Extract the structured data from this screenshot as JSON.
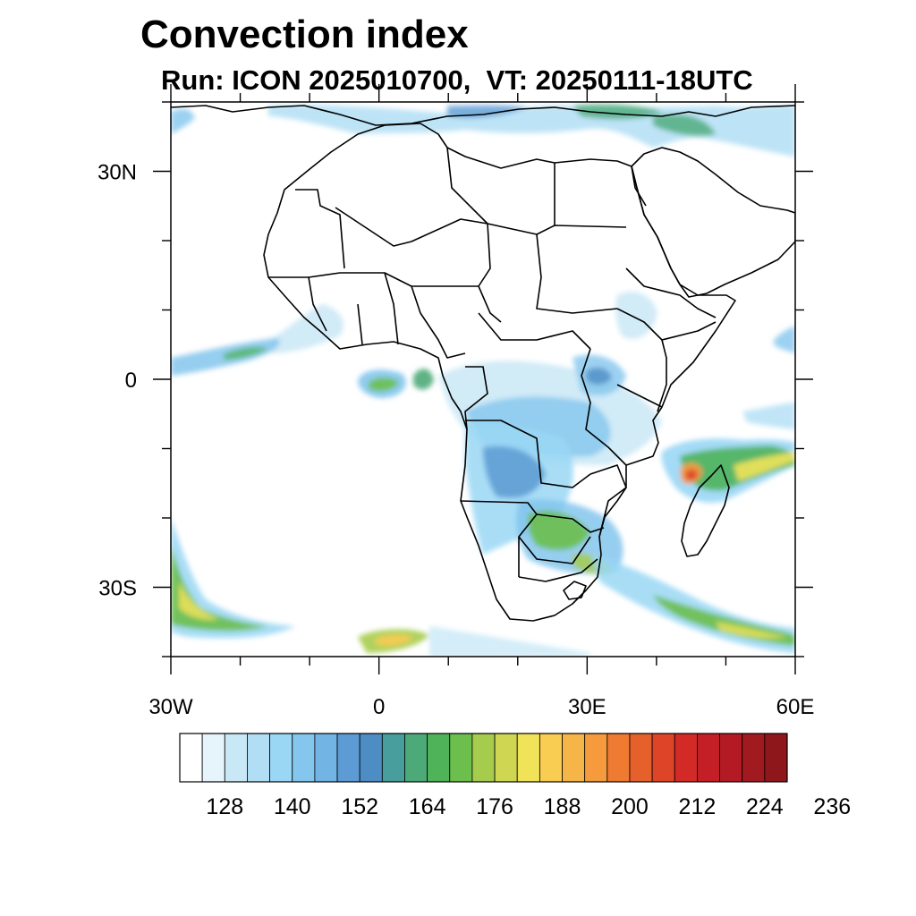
{
  "title": "Convection index",
  "subtitle": "Run: ICON 2025010700,  VT: 20250111-18UTC",
  "map": {
    "lon_range": [
      -30,
      60
    ],
    "lat_range": [
      -40,
      40
    ],
    "lat_labels": [
      "30N",
      "0",
      "30S"
    ],
    "lat_label_values": [
      30,
      0,
      -30
    ],
    "lon_labels": [
      "30W",
      "0",
      "30E",
      "60E"
    ],
    "lon_label_values": [
      -30,
      0,
      30,
      60
    ],
    "minor_ticks_deg": 10,
    "field_regions": [
      {
        "name": "north-mediterranean-band",
        "level": 1
      },
      {
        "name": "gulf-of-guinea-cell",
        "level": 5
      },
      {
        "name": "atlantic-equatorial-band",
        "level": 3
      },
      {
        "name": "congo-basin",
        "level": 2
      },
      {
        "name": "angola-zambia",
        "level": 3
      },
      {
        "name": "zimbabwe-mozambique",
        "level": 5
      },
      {
        "name": "mozambique-channel-cyclone",
        "level": 12
      },
      {
        "name": "indian-ocean-band",
        "level": 10
      },
      {
        "name": "south-atlantic-front",
        "level": 7
      },
      {
        "name": "south-africa-front",
        "level": 8
      },
      {
        "name": "ethiopia-highlands",
        "level": 1
      }
    ]
  },
  "colorbar": {
    "colors": [
      "#ffffff",
      "#e6f4fb",
      "#c9e8f6",
      "#b2def5",
      "#9ad7f5",
      "#84c6ed",
      "#72b4e3",
      "#5c9bd3",
      "#4e8cc4",
      "#489e9c",
      "#4caa78",
      "#4fb35a",
      "#6cbf4c",
      "#a6cc4e",
      "#cfd652",
      "#f0e35a",
      "#f9cc52",
      "#f6b549",
      "#f59a3d",
      "#ef7b32",
      "#e6602c",
      "#de4528",
      "#d32a27",
      "#c41f26",
      "#b41a24",
      "#a11a20",
      "#8e171b"
    ],
    "labels": [
      "128",
      "140",
      "152",
      "164",
      "176",
      "188",
      "200",
      "212",
      "224",
      "236"
    ]
  }
}
